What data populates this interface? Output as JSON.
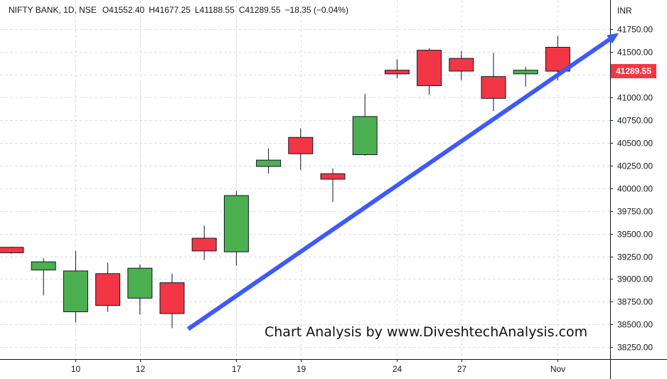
{
  "header": {
    "symbol": "NIFTY BANK, 1D, NSE",
    "open_label": "O",
    "open": "41552.40",
    "high_label": "H",
    "high": "41677.25",
    "low_label": "L",
    "low": "41188.55",
    "close_label": "C",
    "close": "41289.55",
    "change": "−18.35 (−0.04%)"
  },
  "watermark": "Chart Analysis by www.DiveshtechAnalysis.com",
  "colors": {
    "up": "#4caf50",
    "down": "#f23645",
    "arrow": "#3d5afe",
    "grid": "#dedede",
    "text": "#131722",
    "price_tag_bg": "#f23645"
  },
  "chart_data": {
    "type": "candlestick",
    "title": "NIFTY BANK, 1D, NSE",
    "currency": "INR",
    "ylim": [
      38100,
      41950
    ],
    "y_ticks": [
      "38250.00",
      "38500.00",
      "38750.00",
      "39000.00",
      "39250.00",
      "39500.00",
      "39750.00",
      "40000.00",
      "40250.00",
      "40500.00",
      "40750.00",
      "41000.00",
      "41250.00",
      "41500.00",
      "41750.00"
    ],
    "x_ticks": [
      {
        "label": "10",
        "bar": 2
      },
      {
        "label": "12",
        "bar": 4
      },
      {
        "label": "17",
        "bar": 7
      },
      {
        "label": "19",
        "bar": 9
      },
      {
        "label": "24",
        "bar": 12
      },
      {
        "label": "27",
        "bar": 14
      },
      {
        "label": "Nov",
        "bar": 17
      }
    ],
    "current_price": "41289.55",
    "grid": true,
    "candles": [
      {
        "o": 39350,
        "h": 39355,
        "l": 39280,
        "c": 39290
      },
      {
        "o": 39100,
        "h": 39230,
        "l": 38820,
        "c": 39190
      },
      {
        "o": 38640,
        "h": 39310,
        "l": 38520,
        "c": 39090
      },
      {
        "o": 39060,
        "h": 39180,
        "l": 38640,
        "c": 38710
      },
      {
        "o": 38790,
        "h": 39160,
        "l": 38610,
        "c": 39120
      },
      {
        "o": 38960,
        "h": 39060,
        "l": 38460,
        "c": 38620
      },
      {
        "o": 39450,
        "h": 39590,
        "l": 39210,
        "c": 39310
      },
      {
        "o": 39300,
        "h": 39970,
        "l": 39150,
        "c": 39920
      },
      {
        "o": 40240,
        "h": 40440,
        "l": 40160,
        "c": 40310
      },
      {
        "o": 40560,
        "h": 40660,
        "l": 40200,
        "c": 40380
      },
      {
        "o": 40160,
        "h": 40220,
        "l": 39850,
        "c": 40100
      },
      {
        "o": 40370,
        "h": 41040,
        "l": 40360,
        "c": 40790
      },
      {
        "o": 41300,
        "h": 41420,
        "l": 41210,
        "c": 41260
      },
      {
        "o": 41520,
        "h": 41540,
        "l": 41030,
        "c": 41130
      },
      {
        "o": 41430,
        "h": 41510,
        "l": 41190,
        "c": 41290
      },
      {
        "o": 41230,
        "h": 41490,
        "l": 40850,
        "c": 40990
      },
      {
        "o": 41260,
        "h": 41340,
        "l": 41120,
        "c": 41300
      },
      {
        "o": 41552.4,
        "h": 41677.25,
        "l": 41188.55,
        "c": 41289.55
      }
    ],
    "trendline": {
      "from": {
        "bar": 5.5,
        "price": 38450
      },
      "to": {
        "bar": 18.9,
        "price": 41710
      }
    }
  }
}
